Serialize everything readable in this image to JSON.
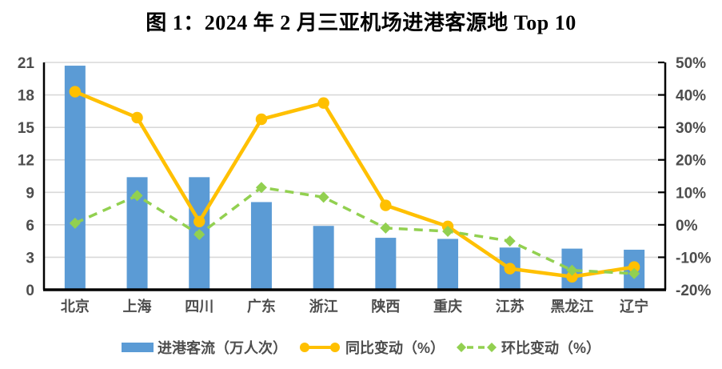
{
  "figure": {
    "caption_prefix": "图 1："
  },
  "chart_data": {
    "type": "bar",
    "subtype": "bar-line-combo",
    "title": "图 1：2024 年 2 月三亚机场进港客源地 Top 10",
    "categories": [
      "北京",
      "上海",
      "四川",
      "广东",
      "浙江",
      "陕西",
      "重庆",
      "江苏",
      "黑龙江",
      "辽宁"
    ],
    "series": [
      {
        "name": "进港客流（万人次）",
        "type": "bar",
        "axis": "left",
        "color": "#5B9BD5",
        "values": [
          20.7,
          10.4,
          10.4,
          8.1,
          5.9,
          4.8,
          4.7,
          3.9,
          3.8,
          3.7
        ]
      },
      {
        "name": "同比变动（%）",
        "type": "line",
        "axis": "right",
        "color": "#FFC000",
        "marker": "circle",
        "dashed": false,
        "values": [
          41,
          33,
          1,
          32.5,
          37.5,
          6,
          -0.5,
          -13.5,
          -16,
          -13
        ]
      },
      {
        "name": "环比变动（%）",
        "type": "line",
        "axis": "right",
        "color": "#92D050",
        "marker": "diamond",
        "dashed": true,
        "values": [
          0.5,
          9,
          -3,
          11.5,
          8.5,
          -1,
          -2,
          -5,
          -14,
          -15
        ]
      }
    ],
    "left_axis": {
      "min": 0,
      "max": 21,
      "step": 3,
      "ticks": [
        "0",
        "3",
        "6",
        "9",
        "12",
        "15",
        "18",
        "21"
      ]
    },
    "right_axis": {
      "min": -20,
      "max": 50,
      "step": 10,
      "ticks": [
        "-20%",
        "-10%",
        "0%",
        "10%",
        "20%",
        "30%",
        "40%",
        "50%"
      ]
    },
    "grid": true,
    "legend_position": "bottom",
    "colors": {
      "grid": "#D9D9D9",
      "axis_line": "#000000",
      "tick_label": "#4D4D4D",
      "title": "#000000",
      "background": "#FFFFFF"
    }
  }
}
